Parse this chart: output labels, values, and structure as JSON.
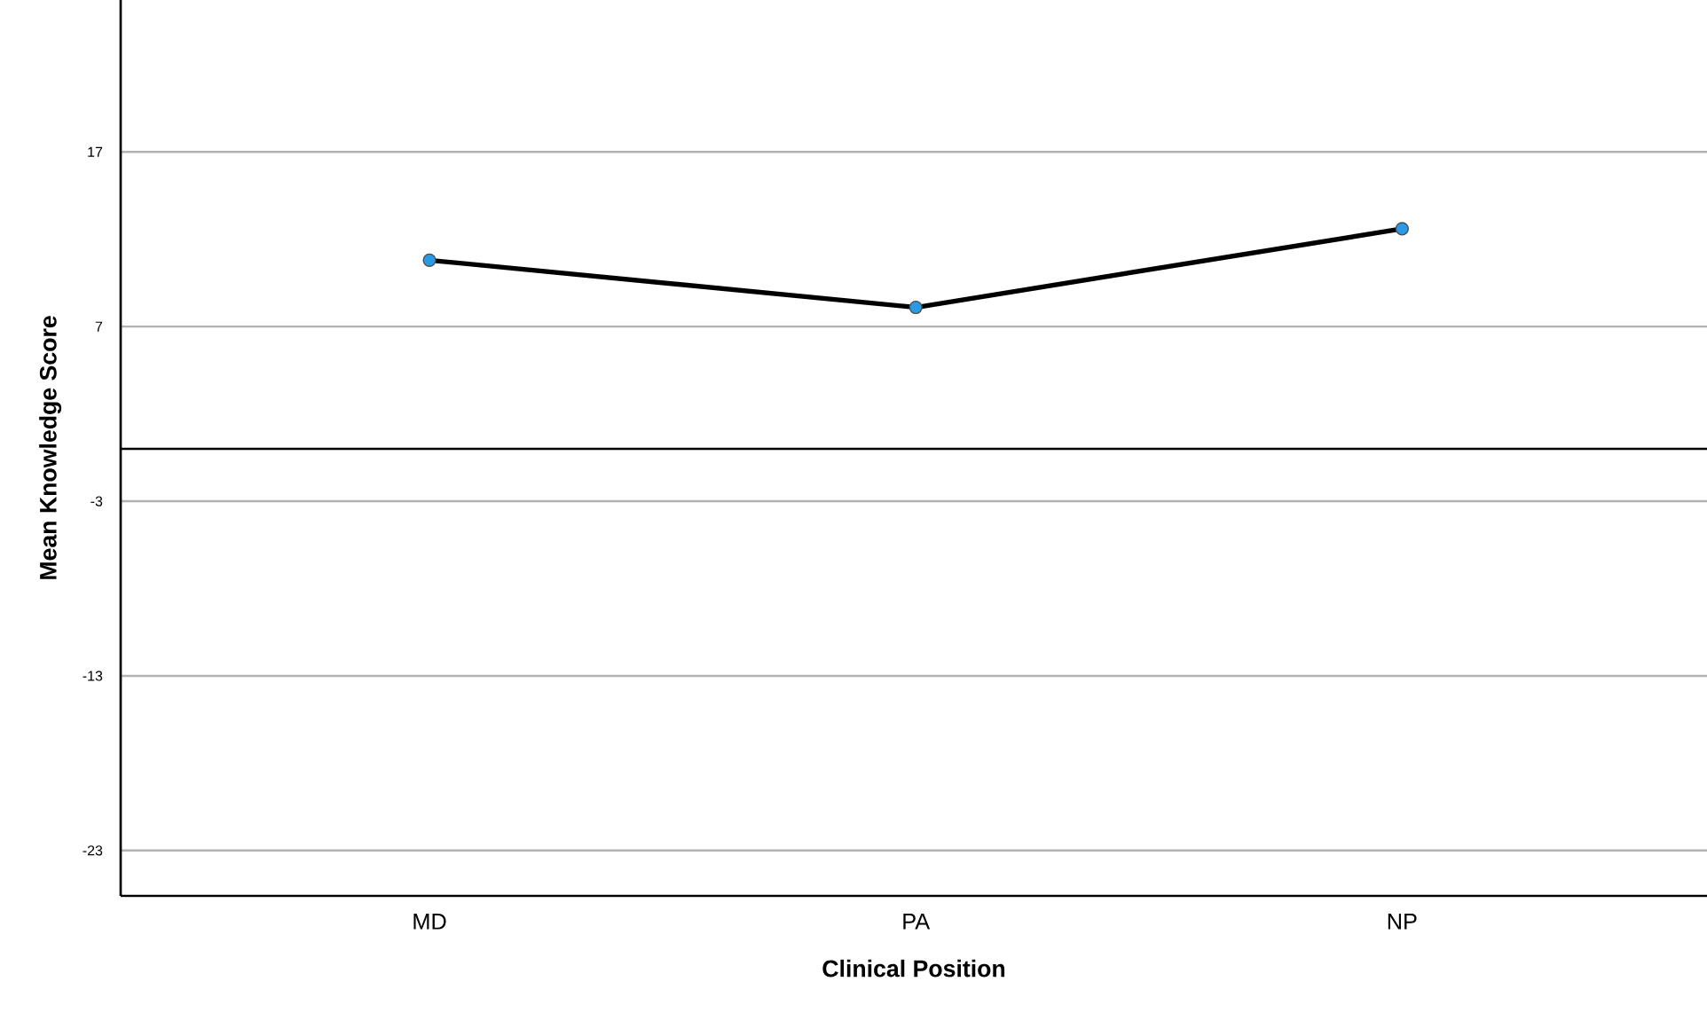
{
  "chart_data": {
    "type": "line",
    "xlabel": "Clinical Position",
    "ylabel": "Mean Knowledge Score",
    "categories": [
      "MD",
      "PA",
      "NP"
    ],
    "series": [
      {
        "color": "#000000",
        "values": [
          10.8,
          8.1,
          12.6
        ]
      }
    ],
    "ylim": [
      -25.6,
      25.7
    ],
    "yticks": [
      -23,
      -13,
      -3,
      7,
      17
    ],
    "grid": "y",
    "marker": "circle",
    "line_style": "solid",
    "ref_lines": [
      {
        "axis": "y",
        "value": 0,
        "color": "#000000"
      }
    ]
  }
}
